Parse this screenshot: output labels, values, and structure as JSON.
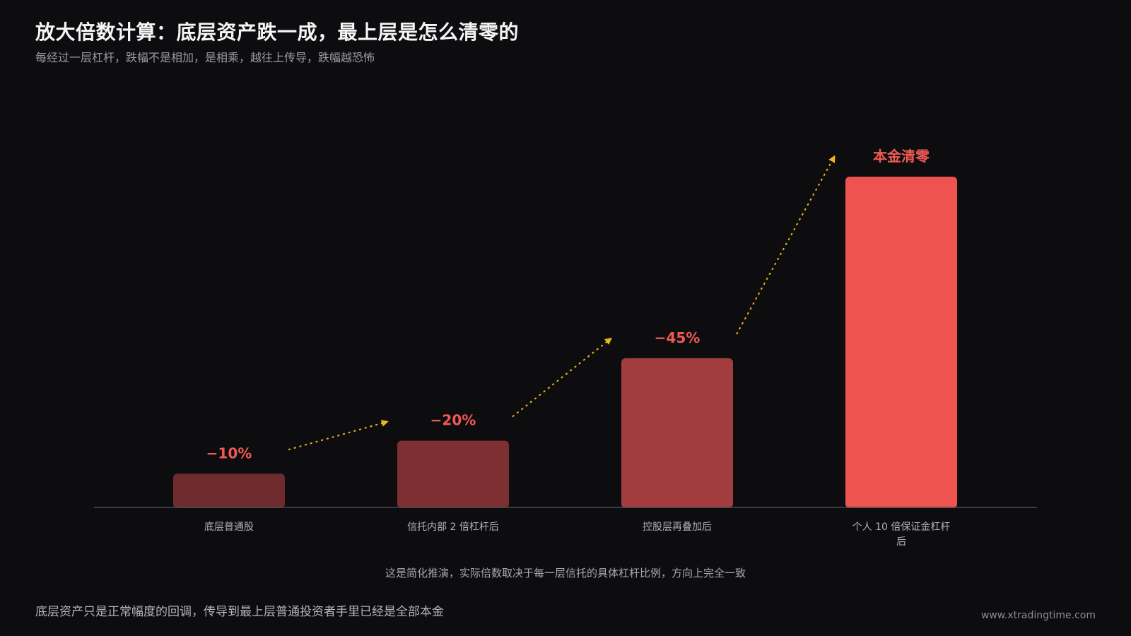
{
  "header": {
    "title": "放大倍数计算：底层资产跌一成，最上层是怎么清零的",
    "subtitle": "每经过一层杠杆，跌幅不是相加，是相乘，越往上传导，跌幅越恐怖"
  },
  "chart_data": {
    "type": "bar",
    "categories": [
      "底层普通股",
      "信托内部 2 倍杠杆后",
      "控股层再叠加后",
      [
        "个人 10 倍保证金杠杆",
        "后"
      ]
    ],
    "values": [
      10,
      20,
      45,
      100
    ],
    "data_labels": [
      "−10%",
      "−20%",
      "−45%",
      "本金清零"
    ],
    "bar_colors": [
      "#6e2a2d",
      "#7d2f32",
      "#a33c3e",
      "#ee5350"
    ],
    "label_color": "#f05a55",
    "arrow_color": "#f0b618",
    "axis_color": "#4a4a50",
    "ylim": [
      0,
      100
    ],
    "grid": false,
    "legend": "none"
  },
  "note": "这是简化推演，实际倍数取决于每一层信托的具体杠杆比例，方向上完全一致",
  "footer": {
    "text": "底层资产只是正常幅度的回调，传导到最上层普通投资者手里已经是全部本金",
    "watermark": "www.xtradingtime.com"
  }
}
